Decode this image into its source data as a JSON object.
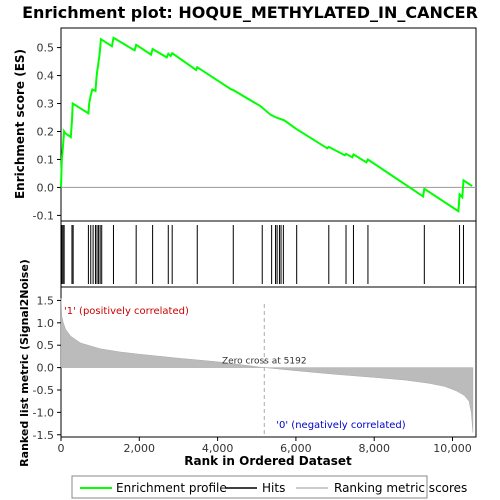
{
  "chart_data": {
    "type": "line",
    "title": "Enrichment plot: HOQUE_METHYLATED_IN_CANCER",
    "top_panel": {
      "ylabel": "Enrichment score (ES)",
      "ylim": [
        -0.12,
        0.57
      ],
      "xlim": [
        0,
        10600
      ],
      "yticks": [
        -0.1,
        0.0,
        0.1,
        0.2,
        0.3,
        0.4,
        0.5
      ],
      "ytick_labels": [
        "-0.1",
        "0.0",
        "0.1",
        "0.2",
        "0.3",
        "0.4",
        "0.5"
      ],
      "series": [
        {
          "name": "Enrichment profile",
          "color": "#00ff00",
          "x": [
            0,
            20,
            40,
            80,
            100,
            250,
            280,
            300,
            700,
            720,
            760,
            800,
            880,
            900,
            920,
            950,
            980,
            1000,
            1020,
            1300,
            1340,
            1880,
            1920,
            2300,
            2340,
            2700,
            2740,
            2800,
            2840,
            3450,
            3480,
            4350,
            4400,
            5100,
            5350,
            5500,
            5600,
            5700,
            6000,
            6800,
            6840,
            7250,
            7280,
            7440,
            7470,
            7800,
            7840,
            9250,
            9280,
            10150,
            10180,
            10250,
            10280,
            10500
          ],
          "y": [
            0.0,
            0.1,
            0.13,
            0.2,
            0.195,
            0.18,
            0.24,
            0.3,
            0.265,
            0.3,
            0.33,
            0.35,
            0.345,
            0.38,
            0.41,
            0.44,
            0.47,
            0.5,
            0.53,
            0.505,
            0.535,
            0.49,
            0.51,
            0.475,
            0.495,
            0.465,
            0.478,
            0.47,
            0.48,
            0.42,
            0.43,
            0.35,
            0.348,
            0.29,
            0.26,
            0.25,
            0.245,
            0.24,
            0.21,
            0.14,
            0.145,
            0.115,
            0.12,
            0.108,
            0.118,
            0.09,
            0.1,
            -0.032,
            -0.005,
            -0.085,
            -0.025,
            -0.035,
            0.025,
            0.005
          ]
        }
      ],
      "zero_line": true
    },
    "hits": [
      20,
      50,
      80,
      280,
      310,
      700,
      760,
      820,
      880,
      920,
      960,
      1000,
      1040,
      1340,
      1920,
      2340,
      2740,
      2840,
      3480,
      4400,
      5140,
      5380,
      5480,
      5520,
      5580,
      5620,
      5680,
      6020,
      6840,
      7280,
      7470,
      7840,
      9280,
      10180,
      10280
    ],
    "bottom_panel": {
      "ylabel": "Ranked list metric (Signal2Noise)",
      "xlabel": "Rank in Ordered Dataset",
      "ylim": [
        -1.55,
        1.8
      ],
      "xlim": [
        0,
        10600
      ],
      "yticks": [
        -1.5,
        -1.0,
        -0.5,
        0.0,
        0.5,
        1.0,
        1.5
      ],
      "ytick_labels": [
        "-1.5",
        "-1.0",
        "-0.5",
        "0.0",
        "0.5",
        "1.0",
        "1.5"
      ],
      "xticks": [
        0,
        2000,
        4000,
        6000,
        8000,
        10000
      ],
      "xtick_labels": [
        "0",
        "2,000",
        "4,000",
        "6,000",
        "8,000",
        "10,000"
      ],
      "metric_curve": {
        "x": [
          0,
          20,
          60,
          120,
          250,
          500,
          1000,
          1500,
          2000,
          3000,
          4000,
          5192,
          6000,
          7000,
          8000,
          8800,
          9400,
          9800,
          10100,
          10300,
          10420,
          10480,
          10520
        ],
        "y": [
          1.55,
          1.15,
          1.0,
          0.85,
          0.7,
          0.55,
          0.42,
          0.35,
          0.3,
          0.21,
          0.13,
          0.0,
          -0.07,
          -0.15,
          -0.22,
          -0.28,
          -0.35,
          -0.42,
          -0.52,
          -0.62,
          -0.75,
          -1.0,
          -1.45
        ]
      },
      "zero_cross_label": "Zero cross at 5192",
      "zero_cross_x": 5192,
      "pos_label": "'1' (positively correlated)",
      "neg_label": "'0' (negatively correlated)",
      "pos_label_color": "#cc0000",
      "neg_label_color": "#0000cc"
    },
    "heatmap_colors": [
      "#ff0000",
      "#ff3030",
      "#ff6060",
      "#ffaaaa",
      "#ffd0e8",
      "#ddd0f0",
      "#c0b0f0",
      "#9090f0",
      "#5050e0",
      "#2020cc",
      "#0000aa"
    ],
    "legend": {
      "placement": "bottom",
      "entries": [
        {
          "label": "Enrichment profile",
          "color": "#00ff00"
        },
        {
          "label": "Hits",
          "color": "#000000"
        },
        {
          "label": "Ranking metric scores",
          "color": "#bbbbbb"
        }
      ]
    }
  }
}
